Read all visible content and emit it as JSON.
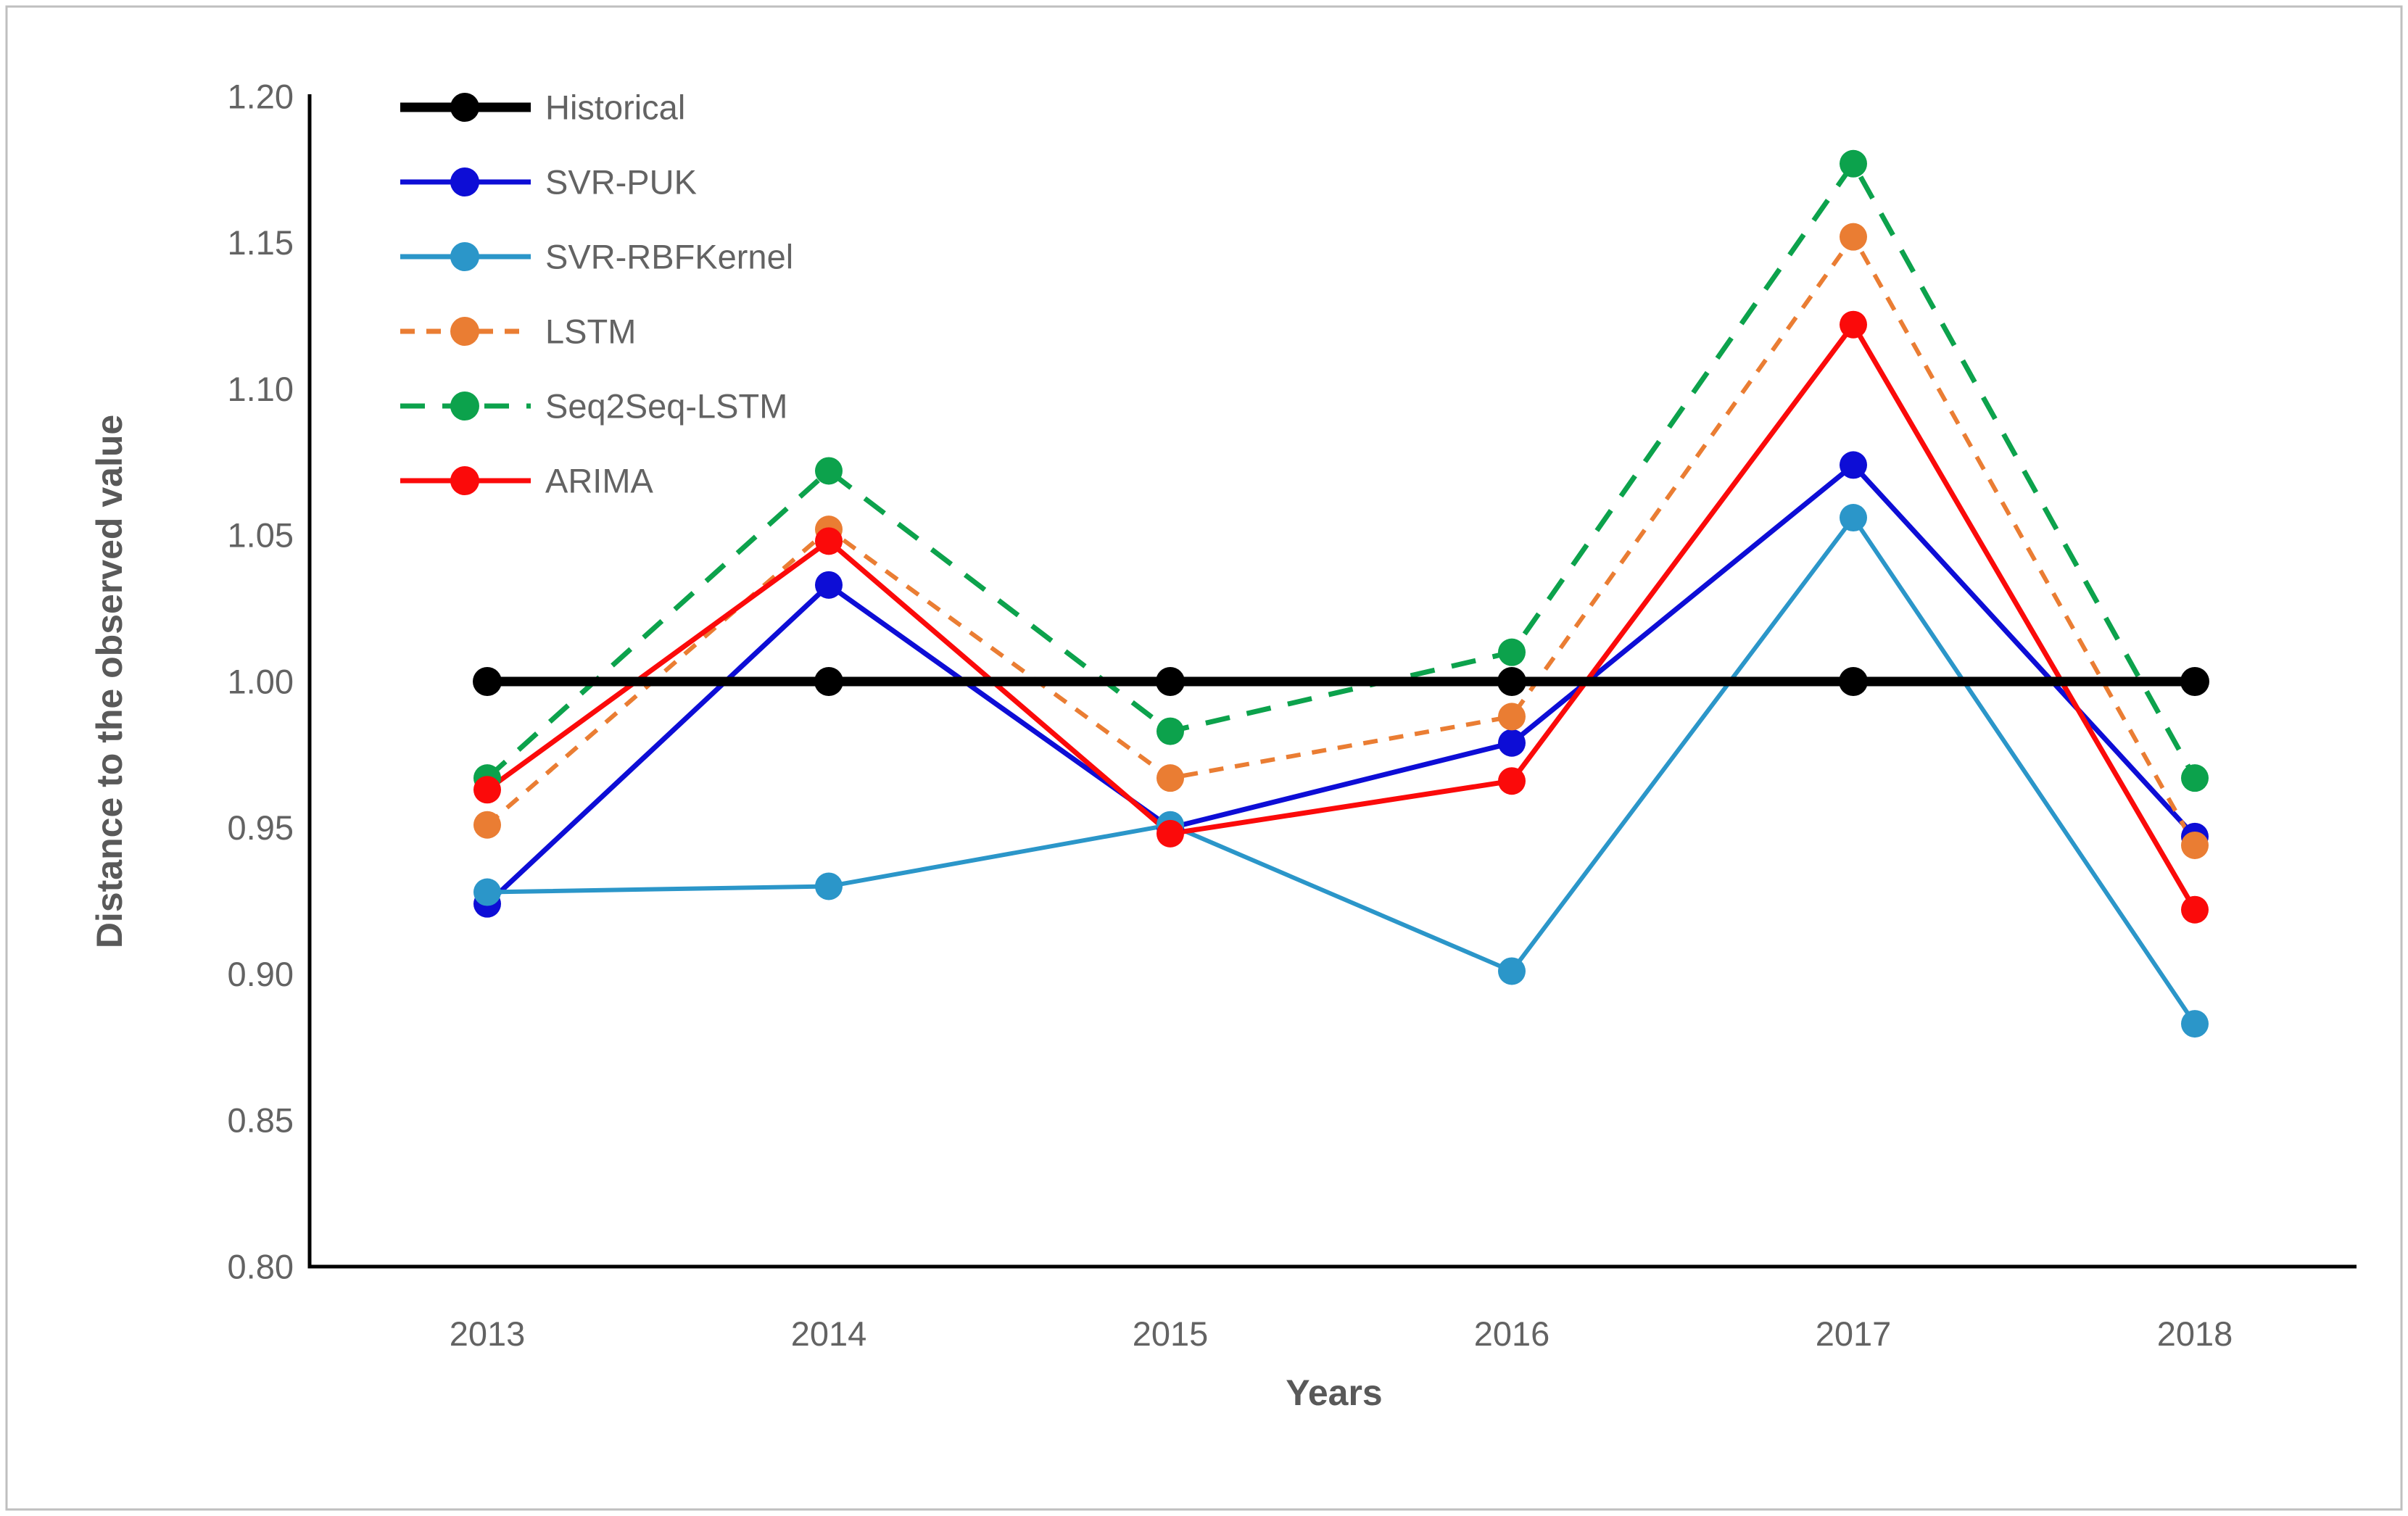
{
  "figure": {
    "background": "#ffffff",
    "border_color": "#bfbfbf",
    "axis_color": "#000000",
    "tick_text_color": "#636363",
    "title_text_color": "#595959"
  },
  "chart_data": {
    "type": "line",
    "title": "",
    "xlabel": "Years",
    "ylabel": "Distance to the observed value",
    "categories": [
      "2013",
      "2014",
      "2015",
      "2016",
      "2017",
      "2018"
    ],
    "y_ticks": [
      1.2,
      1.15,
      1.1,
      1.05,
      1.0,
      0.95,
      0.9,
      0.85,
      0.8
    ],
    "y_tick_labels": [
      "1.20",
      "1.15",
      "1.10",
      "1.05",
      "1.00",
      "0.95",
      "0.90",
      "0.85",
      "0.80"
    ],
    "ylim": [
      0.8,
      1.2
    ],
    "grid": false,
    "legend_position": "top-left-inside",
    "series": [
      {
        "name": "Historical",
        "color": "#000000",
        "dash": "solid",
        "line_width": 13,
        "marker_radius": 20,
        "values": [
          1.0,
          1.0,
          1.0,
          1.0,
          1.0,
          1.0
        ]
      },
      {
        "name": "SVR-PUK",
        "color": "#0d0dd6",
        "dash": "solid",
        "line_width": 7,
        "marker_radius": 19,
        "values": [
          0.924,
          1.033,
          0.95,
          0.979,
          1.074,
          0.947
        ]
      },
      {
        "name": "SVR-RBFKernel",
        "color": "#2b96c9",
        "dash": "solid",
        "line_width": 6,
        "marker_radius": 19,
        "values": [
          0.928,
          0.93,
          0.951,
          0.901,
          1.056,
          0.883
        ]
      },
      {
        "name": "LSTM",
        "color": "#ea7d33",
        "dash": "short-dash",
        "line_width": 6,
        "marker_radius": 19,
        "values": [
          0.951,
          1.052,
          0.967,
          0.988,
          1.152,
          0.944
        ]
      },
      {
        "name": "Seq2Seq-LSTM",
        "color": "#0ca24c",
        "dash": "long-dash",
        "line_width": 7,
        "marker_radius": 19,
        "values": [
          0.967,
          1.072,
          0.983,
          1.01,
          1.177,
          0.967
        ]
      },
      {
        "name": "ARIMA",
        "color": "#fb0a0a",
        "dash": "solid",
        "line_width": 7,
        "marker_radius": 19,
        "values": [
          0.963,
          1.048,
          0.948,
          0.966,
          1.122,
          0.922
        ]
      }
    ]
  }
}
